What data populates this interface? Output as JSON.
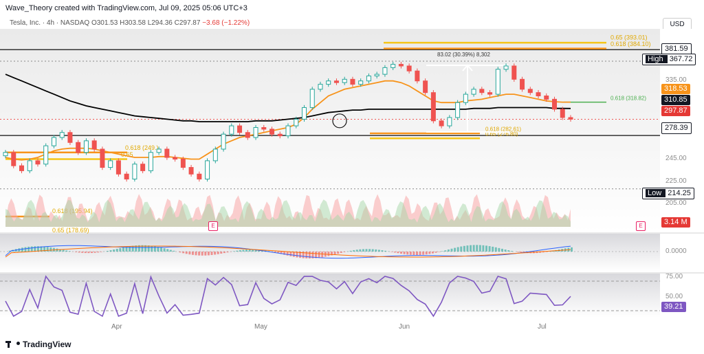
{
  "header": {
    "attribution": "Wave_Theory created with TradingView.com, Jul 09, 2025 05:06 UTC+3",
    "symbol": "Tesla, Inc. · 4h · NASDAQ",
    "ohlc_o": "O301.53",
    "ohlc_h": "H303.58",
    "ohlc_l": "L294.36",
    "ohlc_c": "C297.87",
    "change": "−3.68 (−1.22%)"
  },
  "currency_button": "USD",
  "footer_brand": "TradingView",
  "price_tags": [
    {
      "label": "",
      "value": "381.59",
      "style": "white"
    },
    {
      "label": "High",
      "value": "367.72",
      "style": "white"
    },
    {
      "label": "",
      "value": "318.53",
      "style": "orange"
    },
    {
      "label": "",
      "value": "310.85",
      "style": "black"
    },
    {
      "label": "",
      "value": "297.87",
      "style": "red"
    },
    {
      "label": "",
      "value": "278.39",
      "style": "white"
    },
    {
      "label": "Low",
      "value": "214.25",
      "style": "white"
    },
    {
      "label": "",
      "value": "3.14 M",
      "style": "red"
    },
    {
      "label": "",
      "value": "39.21",
      "style": "purple"
    }
  ],
  "axis_labels": [
    "335.00",
    "245.00",
    "225.00",
    "205.00",
    "0.0000",
    "75.00",
    "50.00"
  ],
  "fib_labels": {
    "f065_top": "0.65 (393.01)",
    "f0618_top": "0.618 (384.10)",
    "measure": "83.02 (30.39%) 8,302",
    "f0618_left": "0.618 (249.)",
    "f065_left": "0.65",
    "f0618_low": "0.618 (195.94)",
    "f065_low": "0.65 (178.69)",
    "f1_mid": "0.618 (282.61)",
    "f1_mid2": "0.65 (276.80)",
    "f1_right": "0.618 (318.82)"
  },
  "event_badge": "E",
  "months": [
    "Apr",
    "May",
    "Jun",
    "Jul"
  ],
  "colors": {
    "up": "#26a69a",
    "down": "#ef5350",
    "ema_orange": "#f7931a",
    "ma_black": "#000000",
    "rsi": "#7e57c2",
    "fib_gold": "#f5c518",
    "volume_green": "#a5d6a7",
    "volume_red": "#f8a5a5"
  },
  "chart_data": {
    "type": "line",
    "title": "Tesla, Inc. · 4h · NASDAQ",
    "xlabel": "",
    "ylabel": "",
    "ylim": [
      195,
      400
    ],
    "x_ticks": [
      "Apr",
      "May",
      "Jun",
      "Jul"
    ],
    "series": [
      {
        "name": "",
        "values": [
          258,
          242,
          236,
          248,
          244,
          266,
          276,
          282,
          270,
          258,
          272,
          262,
          240,
          248,
          232,
          226,
          244,
          236,
          258,
          262,
          252,
          250,
          240,
          232,
          226,
          248,
          262,
          280,
          290,
          282,
          276,
          288,
          286,
          280,
          278,
          290,
          298,
          312,
          334,
          340,
          344,
          342,
          346,
          340,
          344,
          350,
          352,
          360,
          364,
          362,
          356,
          344,
          330,
          296,
          290,
          300,
          318,
          328,
          334,
          330,
          328,
          358,
          362,
          346,
          334,
          330,
          326,
          322,
          310,
          300,
          298
        ]
      },
      {
        "name": "",
        "values": [
          252,
          250,
          249,
          250,
          252,
          256,
          260,
          262,
          263,
          263,
          263,
          262,
          260,
          258,
          256,
          254,
          252,
          252,
          252,
          253,
          253,
          252,
          251,
          250,
          250,
          256,
          262,
          268,
          272,
          276,
          278,
          280,
          282,
          284,
          286,
          288,
          292,
          300,
          310,
          318,
          326,
          330,
          334,
          336,
          338,
          340,
          342,
          344,
          344,
          342,
          338,
          332,
          326,
          320,
          318,
          318,
          318,
          320,
          321,
          322,
          324,
          326,
          328,
          328,
          326,
          324,
          322,
          320,
          319,
          318.5,
          318.5
        ]
      },
      {
        "name": "",
        "values": [
          352,
          348,
          344,
          340,
          336,
          332,
          328,
          324,
          320,
          317,
          314,
          312,
          310,
          308,
          306,
          304,
          302,
          301,
          300,
          299,
          298,
          297,
          296,
          296,
          295,
          295,
          295,
          295,
          295,
          295,
          295,
          296,
          296,
          296,
          297,
          298,
          299,
          300,
          302,
          304,
          306,
          307,
          308,
          309,
          309,
          310,
          310,
          310,
          310,
          310,
          310,
          310,
          310,
          310,
          310,
          310,
          310,
          310,
          311,
          311,
          311,
          312,
          312,
          312,
          312,
          312,
          312,
          312,
          311,
          311,
          310.85
        ]
      }
    ]
  }
}
